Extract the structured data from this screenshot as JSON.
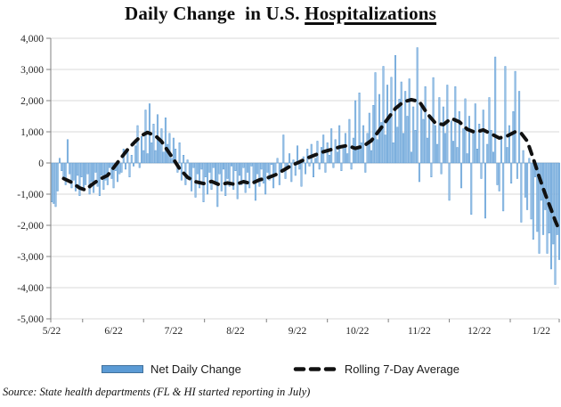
{
  "title": {
    "prefix": "Daily Change  in U.S. ",
    "underlined": "Hospitalizations"
  },
  "legend": {
    "bar_label": "Net Daily Change",
    "line_label": "Rolling 7-Day Average"
  },
  "source": "Source: State health departments (FL & HI started reporting in July)",
  "colors": {
    "bar_fill": "#9DC3E6",
    "bar_stroke": "#5B9BD5",
    "legend_bar_fill": "#5B9BD5",
    "legend_bar_border": "#41719C",
    "line": "#111111",
    "grid": "#D9D9D9",
    "zero_line": "#BFBFBF",
    "axis": "#808080",
    "text": "#262626"
  },
  "chart_data": {
    "type": "bar",
    "title": "Daily Change in U.S. Hospitalizations",
    "xlabel": "",
    "ylabel": "",
    "ylim": [
      -5000,
      4000
    ],
    "grid": "horizontal",
    "legend_position": "bottom",
    "num_days": 255,
    "start_label": "5/22",
    "y_ticks": [
      {
        "value": 4000,
        "label": "4,000"
      },
      {
        "value": 3000,
        "label": "3,000"
      },
      {
        "value": 2000,
        "label": "2,000"
      },
      {
        "value": 1000,
        "label": "1,000"
      },
      {
        "value": 0,
        "label": "0"
      },
      {
        "value": -1000,
        "label": "-1,000"
      },
      {
        "value": -2000,
        "label": "-2,000"
      },
      {
        "value": -3000,
        "label": "-3,000"
      },
      {
        "value": -4000,
        "label": "-4,000"
      },
      {
        "value": -5000,
        "label": "-5,000"
      }
    ],
    "x_ticks": [
      {
        "day": 0,
        "label": "5/22"
      },
      {
        "day": 31,
        "label": "6/22"
      },
      {
        "day": 61,
        "label": "7/22"
      },
      {
        "day": 92,
        "label": "8/22"
      },
      {
        "day": 123,
        "label": "9/22"
      },
      {
        "day": 153,
        "label": "10/22"
      },
      {
        "day": 184,
        "label": "11/22"
      },
      {
        "day": 214,
        "label": "12/22"
      },
      {
        "day": 245,
        "label": "1/22"
      }
    ],
    "series": [
      {
        "name": "Net Daily Change",
        "type": "bar",
        "values": [
          -1250,
          -1300,
          -1400,
          -900,
          150,
          -250,
          -480,
          -700,
          750,
          -350,
          -800,
          -550,
          -900,
          -400,
          -1050,
          -450,
          -850,
          -700,
          -350,
          -1000,
          -600,
          -950,
          -300,
          -750,
          -1050,
          -400,
          -850,
          -550,
          -700,
          -150,
          -500,
          -800,
          -250,
          -600,
          -350,
          -300,
          450,
          -200,
          350,
          -450,
          250,
          -100,
          550,
          1200,
          -150,
          850,
          400,
          1700,
          300,
          1900,
          650,
          1250,
          400,
          1550,
          700,
          1100,
          350,
          1450,
          600,
          950,
          150,
          800,
          450,
          -300,
          650,
          -550,
          250,
          -700,
          100,
          -450,
          -900,
          -150,
          -1100,
          -350,
          -800,
          -200,
          -1250,
          -450,
          -1000,
          -300,
          -850,
          -150,
          -700,
          -1400,
          -350,
          -900,
          -200,
          -1050,
          -500,
          -750,
          -100,
          -850,
          -250,
          -1150,
          -400,
          -700,
          -150,
          -950,
          -300,
          -800,
          -100,
          -600,
          -1200,
          -350,
          -750,
          -200,
          -650,
          -1000,
          -300,
          -550,
          -50,
          -800,
          -400,
          150,
          -700,
          -250,
          900,
          -500,
          -150,
          300,
          -600,
          100,
          -400,
          550,
          -200,
          -750,
          200,
          -350,
          450,
          -100,
          600,
          -450,
          150,
          700,
          -200,
          500,
          900,
          -300,
          650,
          250,
          1100,
          -150,
          750,
          350,
          1200,
          -250,
          550,
          950,
          300,
          1400,
          -200,
          800,
          2000,
          450,
          2250,
          650,
          1200,
          -300,
          950,
          1600,
          400,
          1850,
          2900,
          750,
          2200,
          1300,
          3100,
          900,
          2500,
          1450,
          2750,
          650,
          3450,
          1150,
          2050,
          2600,
          950,
          2300,
          1500,
          2700,
          350,
          1800,
          1050,
          3700,
          -600,
          1900,
          1400,
          2450,
          800,
          1550,
          -450,
          2740,
          1200,
          600,
          2100,
          -350,
          1800,
          950,
          2500,
          -1200,
          1350,
          700,
          2450,
          500,
          1650,
          -800,
          1100,
          2060,
          300,
          1500,
          -1650,
          950,
          1900,
          450,
          1250,
          -500,
          1700,
          -1770,
          600,
          2100,
          1050,
          350,
          3400,
          -700,
          -900,
          800,
          -1540,
          3100,
          500,
          1200,
          -650,
          1650,
          2940,
          -500,
          2300,
          -1900,
          400,
          -1100,
          -1500,
          150,
          -1800,
          -2450,
          -450,
          -2200,
          -2900,
          -1200,
          -2300,
          -1500,
          -2900,
          -2250,
          -3400,
          -2600,
          -3900,
          -2300,
          -3100
        ]
      },
      {
        "name": "Rolling 7-Day Average",
        "type": "line",
        "points": [
          [
            6,
            -500
          ],
          [
            10,
            -620
          ],
          [
            14,
            -800
          ],
          [
            17,
            -870
          ],
          [
            20,
            -700
          ],
          [
            24,
            -520
          ],
          [
            28,
            -400
          ],
          [
            31,
            -150
          ],
          [
            34,
            100
          ],
          [
            38,
            430
          ],
          [
            42,
            700
          ],
          [
            45,
            880
          ],
          [
            48,
            980
          ],
          [
            52,
            870
          ],
          [
            55,
            690
          ],
          [
            58,
            400
          ],
          [
            61,
            120
          ],
          [
            64,
            -180
          ],
          [
            68,
            -460
          ],
          [
            72,
            -600
          ],
          [
            76,
            -660
          ],
          [
            80,
            -590
          ],
          [
            84,
            -700
          ],
          [
            88,
            -640
          ],
          [
            92,
            -690
          ],
          [
            96,
            -600
          ],
          [
            100,
            -660
          ],
          [
            104,
            -540
          ],
          [
            108,
            -480
          ],
          [
            112,
            -380
          ],
          [
            116,
            -230
          ],
          [
            120,
            -80
          ],
          [
            124,
            30
          ],
          [
            128,
            160
          ],
          [
            132,
            260
          ],
          [
            136,
            360
          ],
          [
            140,
            430
          ],
          [
            144,
            510
          ],
          [
            148,
            560
          ],
          [
            152,
            470
          ],
          [
            156,
            540
          ],
          [
            160,
            720
          ],
          [
            164,
            1050
          ],
          [
            168,
            1400
          ],
          [
            172,
            1750
          ],
          [
            176,
            1960
          ],
          [
            180,
            2030
          ],
          [
            184,
            1970
          ],
          [
            188,
            1580
          ],
          [
            192,
            1280
          ],
          [
            196,
            1230
          ],
          [
            200,
            1430
          ],
          [
            204,
            1320
          ],
          [
            208,
            1080
          ],
          [
            212,
            980
          ],
          [
            216,
            1060
          ],
          [
            220,
            930
          ],
          [
            224,
            800
          ],
          [
            228,
            870
          ],
          [
            232,
            1000
          ],
          [
            235,
            950
          ],
          [
            238,
            700
          ],
          [
            241,
            150
          ],
          [
            244,
            -450
          ],
          [
            247,
            -1000
          ],
          [
            250,
            -1500
          ],
          [
            252,
            -1850
          ],
          [
            254,
            -2150
          ]
        ]
      }
    ]
  }
}
